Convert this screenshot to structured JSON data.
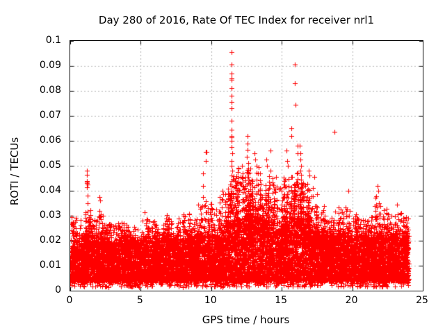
{
  "chart_data": {
    "type": "scatter",
    "title": "Day 280 of 2016, Rate Of TEC Index for receiver nrl1",
    "xlabel": "GPS time / hours",
    "ylabel": "ROTI / TECUs",
    "xlim": [
      0,
      25
    ],
    "ylim": [
      0,
      0.1
    ],
    "grid": true,
    "legend": "none",
    "marker": "plus",
    "colors": {
      "marker": "#ff0000",
      "grid": "#b4b4b4",
      "axis": "#000000",
      "background": "#ffffff"
    },
    "xticks": [
      {
        "v": 0,
        "label": "0"
      },
      {
        "v": 5,
        "label": "5"
      },
      {
        "v": 10,
        "label": "10"
      },
      {
        "v": 15,
        "label": "15"
      },
      {
        "v": 20,
        "label": "20"
      },
      {
        "v": 25,
        "label": "25"
      }
    ],
    "yticks": [
      {
        "v": 0,
        "label": "0"
      },
      {
        "v": 0.01,
        "label": "0.01"
      },
      {
        "v": 0.02,
        "label": "0.02"
      },
      {
        "v": 0.03,
        "label": "0.03"
      },
      {
        "v": 0.04,
        "label": "0.04"
      },
      {
        "v": 0.05,
        "label": "0.05"
      },
      {
        "v": 0.06,
        "label": "0.06"
      },
      {
        "v": 0.07,
        "label": "0.07"
      },
      {
        "v": 0.08,
        "label": "0.08"
      },
      {
        "v": 0.09,
        "label": "0.09"
      },
      {
        "v": 0.1,
        "label": "0.1"
      }
    ],
    "data_hours_range": [
      0,
      24
    ],
    "band": {
      "bin_width_hours": 0.5,
      "floor": 0.004,
      "points_per_bin": 230,
      "seed": 20161006,
      "bins_dense_top_spike_top": [
        [
          0.019,
          0.03
        ],
        [
          0.021,
          0.029
        ],
        [
          0.022,
          0.034
        ],
        [
          0.021,
          0.029
        ],
        [
          0.021,
          0.03
        ],
        [
          0.019,
          0.027
        ],
        [
          0.019,
          0.027
        ],
        [
          0.021,
          0.029
        ],
        [
          0.019,
          0.027
        ],
        [
          0.019,
          0.026
        ],
        [
          0.021,
          0.03
        ],
        [
          0.021,
          0.029
        ],
        [
          0.019,
          0.027
        ],
        [
          0.021,
          0.031
        ],
        [
          0.021,
          0.029
        ],
        [
          0.019,
          0.029
        ],
        [
          0.021,
          0.031
        ],
        [
          0.021,
          0.029
        ],
        [
          0.022,
          0.036
        ],
        [
          0.022,
          0.038
        ],
        [
          0.022,
          0.034
        ],
        [
          0.024,
          0.038
        ],
        [
          0.026,
          0.044
        ],
        [
          0.028,
          0.05
        ],
        [
          0.027,
          0.048
        ],
        [
          0.028,
          0.05
        ],
        [
          0.028,
          0.048
        ],
        [
          0.027,
          0.046
        ],
        [
          0.026,
          0.046
        ],
        [
          0.024,
          0.042
        ],
        [
          0.026,
          0.046
        ],
        [
          0.026,
          0.046
        ],
        [
          0.027,
          0.048
        ],
        [
          0.026,
          0.044
        ],
        [
          0.024,
          0.042
        ],
        [
          0.022,
          0.034
        ],
        [
          0.021,
          0.031
        ],
        [
          0.021,
          0.032
        ],
        [
          0.022,
          0.035
        ],
        [
          0.022,
          0.037
        ],
        [
          0.021,
          0.031
        ],
        [
          0.021,
          0.029
        ],
        [
          0.021,
          0.032
        ],
        [
          0.022,
          0.038
        ],
        [
          0.022,
          0.035
        ],
        [
          0.022,
          0.033
        ],
        [
          0.023,
          0.032
        ],
        [
          0.023,
          0.03
        ]
      ]
    },
    "outliers": [
      [
        1.17,
        0.048
      ],
      [
        1.17,
        0.0465
      ],
      [
        1.18,
        0.044
      ],
      [
        1.19,
        0.0435
      ],
      [
        1.2,
        0.043
      ],
      [
        1.21,
        0.0425
      ],
      [
        1.17,
        0.0415
      ],
      [
        1.22,
        0.038
      ],
      [
        1.25,
        0.035
      ],
      [
        1.1,
        0.0315
      ],
      [
        2.05,
        0.0375
      ],
      [
        2.12,
        0.036
      ],
      [
        2.08,
        0.032
      ],
      [
        2.15,
        0.0305
      ],
      [
        5.3,
        0.0315
      ],
      [
        9.42,
        0.047
      ],
      [
        9.43,
        0.042
      ],
      [
        9.4,
        0.0375
      ],
      [
        9.62,
        0.0555
      ],
      [
        9.66,
        0.0555
      ],
      [
        9.64,
        0.052
      ],
      [
        10.8,
        0.04
      ],
      [
        10.85,
        0.0385
      ],
      [
        11.44,
        0.0955
      ],
      [
        11.44,
        0.0905
      ],
      [
        11.44,
        0.087
      ],
      [
        11.44,
        0.085
      ],
      [
        11.46,
        0.0845
      ],
      [
        11.44,
        0.081
      ],
      [
        11.44,
        0.078
      ],
      [
        11.45,
        0.0755
      ],
      [
        11.44,
        0.073
      ],
      [
        11.45,
        0.068
      ],
      [
        11.42,
        0.0645
      ],
      [
        11.46,
        0.062
      ],
      [
        11.43,
        0.0615
      ],
      [
        11.45,
        0.06
      ],
      [
        11.44,
        0.0575
      ],
      [
        11.47,
        0.055
      ],
      [
        11.44,
        0.052
      ],
      [
        11.45,
        0.05
      ],
      [
        11.48,
        0.048
      ],
      [
        11.43,
        0.046
      ],
      [
        11.44,
        0.044
      ],
      [
        11.46,
        0.042
      ],
      [
        11.44,
        0.04
      ],
      [
        12.2,
        0.05
      ],
      [
        12.25,
        0.047
      ],
      [
        12.55,
        0.062
      ],
      [
        12.58,
        0.059
      ],
      [
        12.55,
        0.0565
      ],
      [
        12.52,
        0.0535
      ],
      [
        12.6,
        0.051
      ],
      [
        12.62,
        0.049
      ],
      [
        13.05,
        0.055
      ],
      [
        13.1,
        0.0525
      ],
      [
        13.2,
        0.05
      ],
      [
        13.35,
        0.0495
      ],
      [
        13.3,
        0.047
      ],
      [
        13.9,
        0.0525
      ],
      [
        13.95,
        0.05
      ],
      [
        14.18,
        0.056
      ],
      [
        14.22,
        0.048
      ],
      [
        14.6,
        0.0455
      ],
      [
        15.33,
        0.056
      ],
      [
        15.38,
        0.052
      ],
      [
        15.42,
        0.05
      ],
      [
        15.68,
        0.065
      ],
      [
        15.7,
        0.062
      ],
      [
        15.92,
        0.0905
      ],
      [
        15.92,
        0.083
      ],
      [
        15.96,
        0.0745
      ],
      [
        16.1,
        0.058
      ],
      [
        16.12,
        0.055
      ],
      [
        16.28,
        0.058
      ],
      [
        16.3,
        0.055
      ],
      [
        16.33,
        0.0525
      ],
      [
        16.35,
        0.05
      ],
      [
        16.3,
        0.048
      ],
      [
        16.9,
        0.048
      ],
      [
        16.95,
        0.046
      ],
      [
        17.3,
        0.0455
      ],
      [
        18.74,
        0.0635
      ],
      [
        19.7,
        0.04
      ],
      [
        21.8,
        0.042
      ],
      [
        21.85,
        0.04
      ],
      [
        23.2,
        0.0345
      ]
    ]
  }
}
